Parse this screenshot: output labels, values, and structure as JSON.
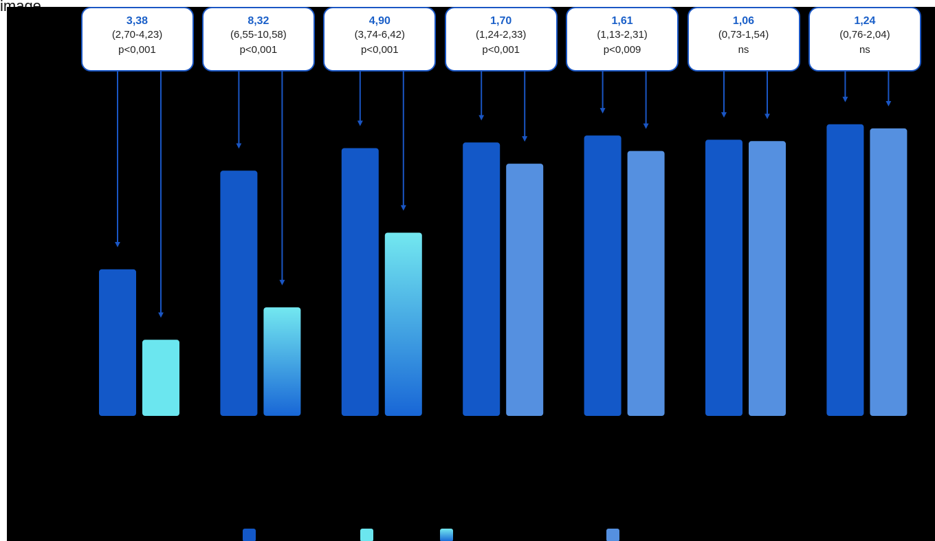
{
  "frame_label": "image",
  "colors": {
    "dark_blue": "#1358c8",
    "cyan": "#6be6ef",
    "gradient_top": "#73e8f0",
    "gradient_bottom": "#1866d6",
    "light_blue": "#5590e0",
    "arrow": "#1a56c4",
    "background": "#000000"
  },
  "chart_data": {
    "type": "bar",
    "title": "",
    "xlabel": "",
    "ylabel": "",
    "y_axis_visible": false,
    "grid": false,
    "legend_position": "bottom",
    "groups": [
      {
        "ratio": "3,38",
        "ci": "(2,70-4,23)",
        "p": "p<0,001",
        "values": [
          52,
          27
        ],
        "styles": [
          "dark_blue",
          "cyan"
        ]
      },
      {
        "ratio": "8,32",
        "ci": "(6,55-10,58)",
        "p": "p<0,001",
        "values": [
          87,
          38.5
        ],
        "styles": [
          "dark_blue",
          "gradient"
        ]
      },
      {
        "ratio": "4,90",
        "ci": "(3,74-6,42)",
        "p": "p<0,001",
        "values": [
          95,
          65
        ],
        "styles": [
          "dark_blue",
          "gradient"
        ]
      },
      {
        "ratio": "1,70",
        "ci": "(1,24-2,33)",
        "p": "p<0,001",
        "values": [
          97,
          89.5
        ],
        "styles": [
          "dark_blue",
          "light_blue"
        ]
      },
      {
        "ratio": "1,61",
        "ci": "(1,13-2,31)",
        "p": "p<0,009",
        "values": [
          99.5,
          94
        ],
        "styles": [
          "dark_blue",
          "light_blue"
        ]
      },
      {
        "ratio": "1,06",
        "ci": "(0,73-1,54)",
        "p": "ns",
        "values": [
          98,
          97.5
        ],
        "styles": [
          "dark_blue",
          "light_blue"
        ]
      },
      {
        "ratio": "1,24",
        "ci": "(0,76-2,04)",
        "p": "ns",
        "values": [
          103.5,
          102
        ],
        "styles": [
          "dark_blue",
          "light_blue"
        ]
      }
    ],
    "legend": [
      {
        "label": "",
        "style": "dark_blue"
      },
      {
        "label": "",
        "style": "cyan"
      },
      {
        "label": "",
        "style": "gradient"
      },
      {
        "label": "",
        "style": "light_blue"
      }
    ]
  }
}
